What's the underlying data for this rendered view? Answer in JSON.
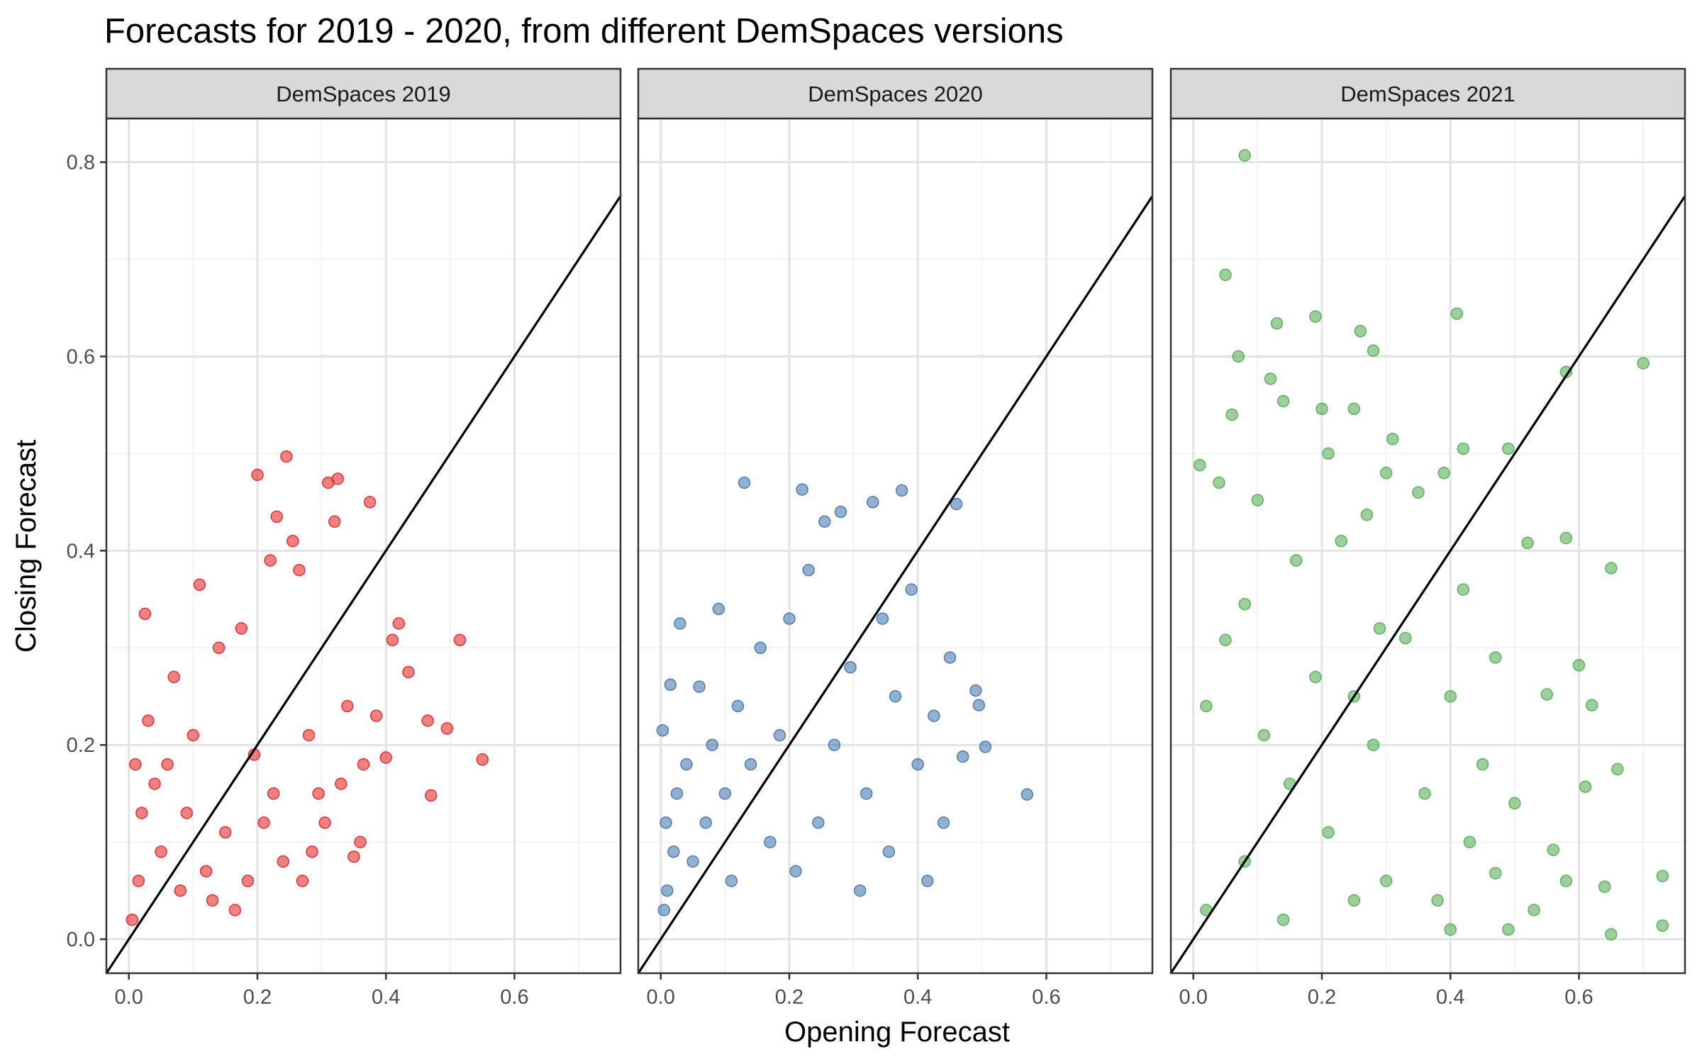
{
  "chart_data": {
    "type": "scatter",
    "title": "Forecasts for 2019 - 2020, from different DemSpaces versions",
    "xlabel": "Opening Forecast",
    "ylabel": "Closing Forecast",
    "xlim": [
      -0.035,
      0.765
    ],
    "ylim": [
      -0.035,
      0.845
    ],
    "x_ticks": [
      0.0,
      0.2,
      0.4,
      0.6
    ],
    "x_tick_labels": [
      "0.0",
      "0.2",
      "0.4",
      "0.6"
    ],
    "y_ticks": [
      0.0,
      0.2,
      0.4,
      0.6,
      0.8
    ],
    "y_tick_labels": [
      "0.0",
      "0.2",
      "0.4",
      "0.6",
      "0.8"
    ],
    "grid": true,
    "reference_line": "y = x",
    "panels": [
      {
        "label": "DemSpaces 2019",
        "color": "#e41a1c",
        "points": [
          [
            0.55,
            0.185
          ],
          [
            0.515,
            0.308
          ],
          [
            0.495,
            0.217
          ],
          [
            0.47,
            0.148
          ],
          [
            0.465,
            0.225
          ],
          [
            0.435,
            0.275
          ],
          [
            0.42,
            0.325
          ],
          [
            0.41,
            0.308
          ],
          [
            0.4,
            0.187
          ],
          [
            0.385,
            0.23
          ],
          [
            0.375,
            0.45
          ],
          [
            0.365,
            0.18
          ],
          [
            0.36,
            0.1
          ],
          [
            0.35,
            0.085
          ],
          [
            0.34,
            0.24
          ],
          [
            0.33,
            0.16
          ],
          [
            0.325,
            0.474
          ],
          [
            0.32,
            0.43
          ],
          [
            0.31,
            0.47
          ],
          [
            0.305,
            0.12
          ],
          [
            0.295,
            0.15
          ],
          [
            0.285,
            0.09
          ],
          [
            0.28,
            0.21
          ],
          [
            0.27,
            0.06
          ],
          [
            0.265,
            0.38
          ],
          [
            0.255,
            0.41
          ],
          [
            0.245,
            0.497
          ],
          [
            0.24,
            0.08
          ],
          [
            0.23,
            0.435
          ],
          [
            0.225,
            0.15
          ],
          [
            0.22,
            0.39
          ],
          [
            0.21,
            0.12
          ],
          [
            0.2,
            0.478
          ],
          [
            0.195,
            0.19
          ],
          [
            0.185,
            0.06
          ],
          [
            0.175,
            0.32
          ],
          [
            0.165,
            0.03
          ],
          [
            0.15,
            0.11
          ],
          [
            0.14,
            0.3
          ],
          [
            0.13,
            0.04
          ],
          [
            0.12,
            0.07
          ],
          [
            0.11,
            0.365
          ],
          [
            0.1,
            0.21
          ],
          [
            0.09,
            0.13
          ],
          [
            0.08,
            0.05
          ],
          [
            0.07,
            0.27
          ],
          [
            0.06,
            0.18
          ],
          [
            0.05,
            0.09
          ],
          [
            0.04,
            0.16
          ],
          [
            0.03,
            0.225
          ],
          [
            0.025,
            0.335
          ],
          [
            0.02,
            0.13
          ],
          [
            0.015,
            0.06
          ],
          [
            0.01,
            0.18
          ],
          [
            0.005,
            0.02
          ]
        ]
      },
      {
        "label": "DemSpaces 2020",
        "color": "#3a6fa9",
        "points": [
          [
            0.57,
            0.149
          ],
          [
            0.505,
            0.198
          ],
          [
            0.495,
            0.241
          ],
          [
            0.49,
            0.256
          ],
          [
            0.47,
            0.188
          ],
          [
            0.46,
            0.448
          ],
          [
            0.45,
            0.29
          ],
          [
            0.44,
            0.12
          ],
          [
            0.425,
            0.23
          ],
          [
            0.415,
            0.06
          ],
          [
            0.4,
            0.18
          ],
          [
            0.39,
            0.36
          ],
          [
            0.375,
            0.462
          ],
          [
            0.365,
            0.25
          ],
          [
            0.355,
            0.09
          ],
          [
            0.345,
            0.33
          ],
          [
            0.33,
            0.45
          ],
          [
            0.32,
            0.15
          ],
          [
            0.31,
            0.05
          ],
          [
            0.295,
            0.28
          ],
          [
            0.28,
            0.44
          ],
          [
            0.27,
            0.2
          ],
          [
            0.255,
            0.43
          ],
          [
            0.245,
            0.12
          ],
          [
            0.23,
            0.38
          ],
          [
            0.22,
            0.463
          ],
          [
            0.21,
            0.07
          ],
          [
            0.2,
            0.33
          ],
          [
            0.185,
            0.21
          ],
          [
            0.17,
            0.1
          ],
          [
            0.155,
            0.3
          ],
          [
            0.14,
            0.18
          ],
          [
            0.13,
            0.47
          ],
          [
            0.12,
            0.24
          ],
          [
            0.11,
            0.06
          ],
          [
            0.1,
            0.15
          ],
          [
            0.09,
            0.34
          ],
          [
            0.08,
            0.2
          ],
          [
            0.07,
            0.12
          ],
          [
            0.06,
            0.26
          ],
          [
            0.05,
            0.08
          ],
          [
            0.04,
            0.18
          ],
          [
            0.03,
            0.325
          ],
          [
            0.025,
            0.15
          ],
          [
            0.02,
            0.09
          ],
          [
            0.015,
            0.262
          ],
          [
            0.01,
            0.05
          ],
          [
            0.008,
            0.12
          ],
          [
            0.005,
            0.03
          ],
          [
            0.003,
            0.215
          ]
        ]
      },
      {
        "label": "DemSpaces 2021",
        "color": "#4aa84a",
        "points": [
          [
            0.08,
            0.807
          ],
          [
            0.05,
            0.684
          ],
          [
            0.41,
            0.644
          ],
          [
            0.7,
            0.593
          ],
          [
            0.19,
            0.641
          ],
          [
            0.26,
            0.626
          ],
          [
            0.13,
            0.634
          ],
          [
            0.28,
            0.606
          ],
          [
            0.07,
            0.6
          ],
          [
            0.58,
            0.584
          ],
          [
            0.12,
            0.577
          ],
          [
            0.14,
            0.554
          ],
          [
            0.2,
            0.546
          ],
          [
            0.25,
            0.546
          ],
          [
            0.06,
            0.54
          ],
          [
            0.31,
            0.515
          ],
          [
            0.42,
            0.505
          ],
          [
            0.49,
            0.505
          ],
          [
            0.21,
            0.5
          ],
          [
            0.04,
            0.47
          ],
          [
            0.3,
            0.48
          ],
          [
            0.27,
            0.437
          ],
          [
            0.39,
            0.48
          ],
          [
            0.01,
            0.488
          ],
          [
            0.35,
            0.46
          ],
          [
            0.58,
            0.413
          ],
          [
            0.1,
            0.452
          ],
          [
            0.23,
            0.41
          ],
          [
            0.65,
            0.382
          ],
          [
            0.16,
            0.39
          ],
          [
            0.52,
            0.408
          ],
          [
            0.42,
            0.36
          ],
          [
            0.08,
            0.345
          ],
          [
            0.29,
            0.32
          ],
          [
            0.33,
            0.31
          ],
          [
            0.47,
            0.29
          ],
          [
            0.6,
            0.282
          ],
          [
            0.05,
            0.308
          ],
          [
            0.19,
            0.27
          ],
          [
            0.25,
            0.25
          ],
          [
            0.4,
            0.25
          ],
          [
            0.55,
            0.252
          ],
          [
            0.62,
            0.241
          ],
          [
            0.02,
            0.24
          ],
          [
            0.11,
            0.21
          ],
          [
            0.28,
            0.2
          ],
          [
            0.45,
            0.18
          ],
          [
            0.66,
            0.175
          ],
          [
            0.15,
            0.16
          ],
          [
            0.36,
            0.15
          ],
          [
            0.61,
            0.157
          ],
          [
            0.5,
            0.14
          ],
          [
            0.21,
            0.11
          ],
          [
            0.43,
            0.1
          ],
          [
            0.56,
            0.092
          ],
          [
            0.08,
            0.08
          ],
          [
            0.3,
            0.06
          ],
          [
            0.47,
            0.068
          ],
          [
            0.58,
            0.06
          ],
          [
            0.73,
            0.065
          ],
          [
            0.64,
            0.054
          ],
          [
            0.25,
            0.04
          ],
          [
            0.38,
            0.04
          ],
          [
            0.53,
            0.03
          ],
          [
            0.02,
            0.03
          ],
          [
            0.14,
            0.02
          ],
          [
            0.4,
            0.01
          ],
          [
            0.49,
            0.01
          ],
          [
            0.65,
            0.005
          ],
          [
            0.73,
            0.014
          ]
        ]
      }
    ]
  }
}
